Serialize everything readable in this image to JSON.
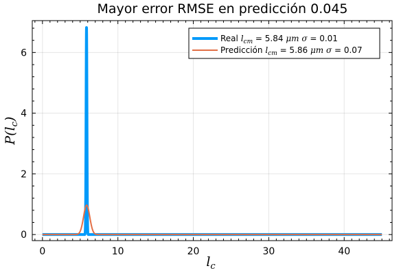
{
  "chart_data": {
    "type": "line",
    "title": "Mayor error RMSE en predicción 0.045",
    "xlabel": "l_c",
    "ylabel": "P(l_c)",
    "xlim": [
      -1.35,
      46.35
    ],
    "ylim": [
      -0.2,
      7.05
    ],
    "xticks": [
      0,
      10,
      20,
      30,
      40
    ],
    "yticks": [
      0,
      2,
      4,
      6
    ],
    "grid": true,
    "legend_position": "top-right",
    "series": [
      {
        "name": "Real l_cm = 5.84 μm σ = 0.01",
        "name_parts": {
          "prefix": "Real ",
          "lcm": "l",
          "lcm_sub": "cm",
          "eq1": " =  5.84 ",
          "unit": "μm",
          "sigma": "  σ = ",
          "sigma_val": " 0.01"
        },
        "mean": 5.84,
        "std": 0.0585,
        "peak": 6.82,
        "x_range": [
          0,
          45
        ],
        "color": "#009AFA",
        "line_width": 4
      },
      {
        "name": "Predicción l_cm = 5.86 μm σ = 0.07",
        "name_parts": {
          "prefix": "Predicción ",
          "lcm": "l",
          "lcm_sub": "cm",
          "eq1": " =  5.86 ",
          "unit": "μm",
          "sigma": " σ = ",
          "sigma_val": " 0.07"
        },
        "mean": 5.86,
        "std": 0.41,
        "peak": 0.97,
        "x_range": [
          0,
          45
        ],
        "color": "#E26F46",
        "line_width": 2
      }
    ]
  }
}
